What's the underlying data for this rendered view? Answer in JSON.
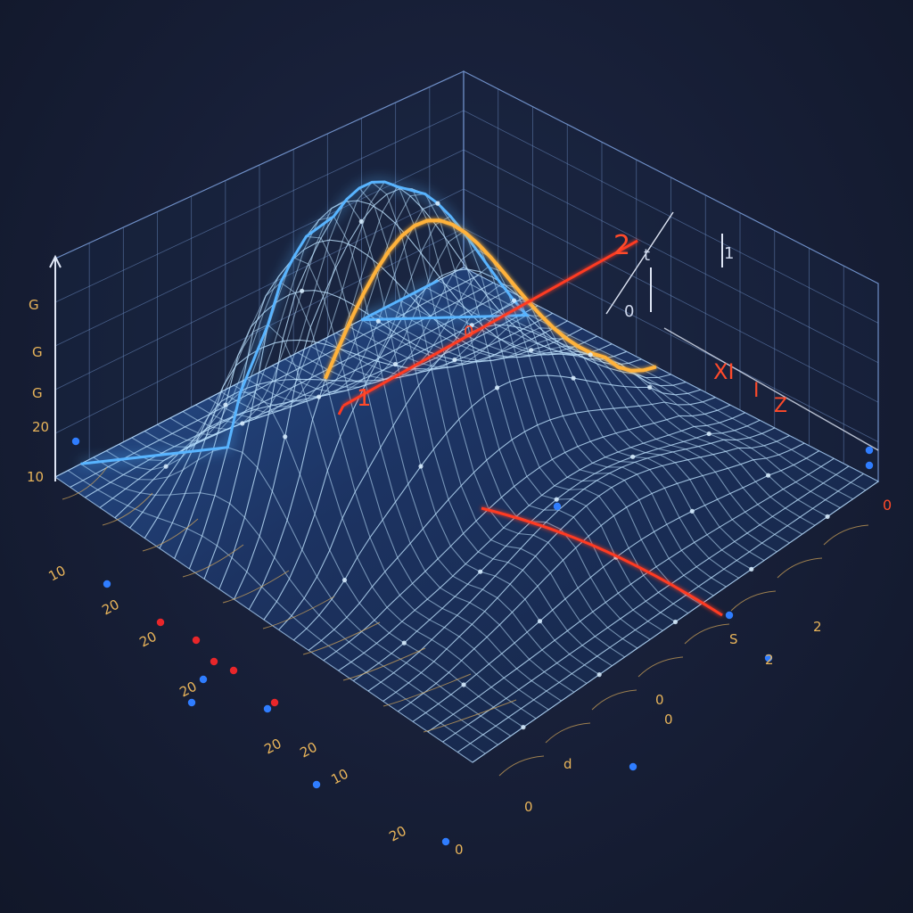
{
  "labels": {
    "left_axis": [
      "G",
      "G",
      "G",
      "20",
      "10"
    ],
    "front_left": [
      "10",
      "20",
      "20",
      "20",
      "20",
      "20",
      "10",
      "20"
    ],
    "front_right": [
      "0",
      "S",
      "2",
      "2",
      "0",
      "0",
      "d",
      "0"
    ],
    "curve_marks": [
      "2",
      "1",
      "0"
    ],
    "right_side": [
      "XI",
      "I",
      "Z",
      "0"
    ],
    "wall_marks": [
      "t",
      "1",
      "0"
    ]
  },
  "colors": {
    "background": "#151c30",
    "grid": "#7fa0d8",
    "mesh": "#bfe3ff",
    "glow": "#3aa0ff",
    "highlight_curve": "#ffb23a",
    "axis_line": "#ff3b22",
    "tick_text": "#e8b45a",
    "red_dot": "#e8262a",
    "blue_dot": "#2f7dff"
  }
}
